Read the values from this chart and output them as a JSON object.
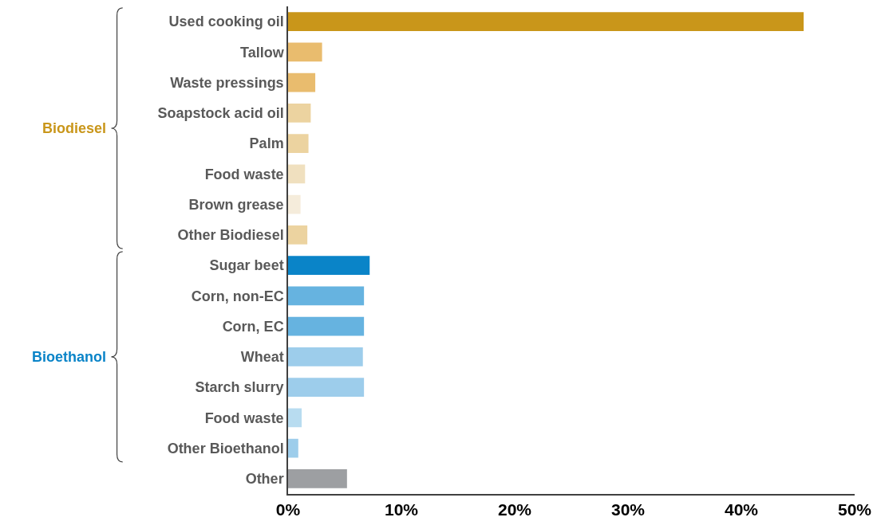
{
  "chart_data": {
    "type": "bar",
    "orientation": "horizontal",
    "categories": [
      "Used cooking oil",
      "Tallow",
      "Waste pressings",
      "Soapstock acid oil",
      "Palm",
      "Food waste",
      "Brown grease",
      "Other Biodiesel",
      "Sugar beet",
      "Corn, non-EC",
      "Corn, EC",
      "Wheat",
      "Starch slurry",
      "Food waste",
      "Other Bioethanol",
      "Other"
    ],
    "series": [
      {
        "name": "Biodiesel",
        "colors": [
          "#c9961a",
          "#e9bc6e",
          "#e9bc6e",
          "#ecd3a0",
          "#ecd3a0",
          "#f0e0bf",
          "#f5ecdb",
          "#ecd3a0",
          null,
          null,
          null,
          null,
          null,
          null,
          null,
          null
        ],
        "values": [
          45.5,
          3.0,
          2.4,
          2.0,
          1.8,
          1.5,
          1.1,
          1.7,
          null,
          null,
          null,
          null,
          null,
          null,
          null,
          null
        ]
      },
      {
        "name": "Bioethanol",
        "colors": [
          null,
          null,
          null,
          null,
          null,
          null,
          null,
          null,
          "#0a84c8",
          "#66b3e0",
          "#66b3e0",
          "#9dcdeb",
          "#9dcdeb",
          "#b8dcf0",
          "#9dcdeb",
          null
        ],
        "values": [
          null,
          null,
          null,
          null,
          null,
          null,
          null,
          null,
          7.2,
          6.7,
          6.7,
          6.6,
          6.7,
          1.2,
          0.9,
          null
        ]
      },
      {
        "colors": [
          null,
          null,
          null,
          null,
          null,
          null,
          null,
          null,
          null,
          null,
          null,
          null,
          null,
          null,
          null,
          "#9d9fa2"
        ],
        "values": [
          null,
          null,
          null,
          null,
          null,
          null,
          null,
          null,
          null,
          null,
          null,
          null,
          null,
          null,
          null,
          5.2
        ]
      }
    ],
    "xlim": [
      0,
      50
    ],
    "xticks": [
      {
        "value": 0,
        "label": "0%"
      },
      {
        "value": 10,
        "label": "10%"
      },
      {
        "value": 20,
        "label": "20%"
      },
      {
        "value": 30,
        "label": "30%"
      },
      {
        "value": 40,
        "label": "40%"
      },
      {
        "value": 50,
        "label": "50%"
      }
    ],
    "legend": false
  }
}
